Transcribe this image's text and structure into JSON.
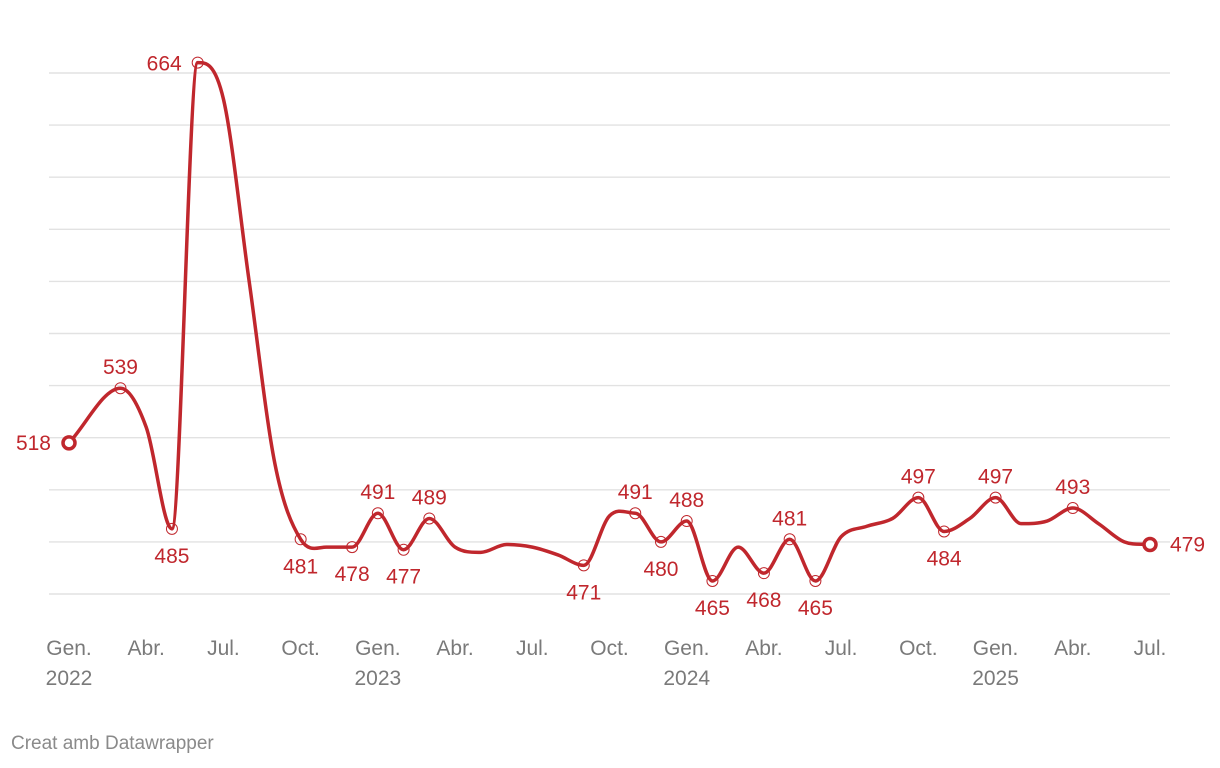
{
  "chart_data": {
    "type": "line",
    "title": "",
    "xlabel": "",
    "ylabel": "",
    "ylim": [
      450,
      675
    ],
    "grid": true,
    "y_tick_values": [
      460,
      480,
      500,
      520,
      540,
      560,
      580,
      600,
      620,
      640,
      660
    ],
    "x_ticks": [
      {
        "month": "2022-01",
        "label": [
          "Gen.",
          "2022"
        ]
      },
      {
        "month": "2022-04",
        "label": [
          "Abr."
        ]
      },
      {
        "month": "2022-07",
        "label": [
          "Jul."
        ]
      },
      {
        "month": "2022-10",
        "label": [
          "Oct."
        ]
      },
      {
        "month": "2023-01",
        "label": [
          "Gen.",
          "2023"
        ]
      },
      {
        "month": "2023-04",
        "label": [
          "Abr."
        ]
      },
      {
        "month": "2023-07",
        "label": [
          "Jul."
        ]
      },
      {
        "month": "2023-10",
        "label": [
          "Oct."
        ]
      },
      {
        "month": "2024-01",
        "label": [
          "Gen.",
          "2024"
        ]
      },
      {
        "month": "2024-04",
        "label": [
          "Abr."
        ]
      },
      {
        "month": "2024-07",
        "label": [
          "Jul."
        ]
      },
      {
        "month": "2024-10",
        "label": [
          "Oct."
        ]
      },
      {
        "month": "2025-01",
        "label": [
          "Gen.",
          "2025"
        ]
      },
      {
        "month": "2025-04",
        "label": [
          "Abr."
        ]
      },
      {
        "month": "2025-07",
        "label": [
          "Jul."
        ]
      }
    ],
    "series": [
      {
        "color": "#c0272d",
        "points": [
          {
            "x": "2022-01",
            "y": 518,
            "label": "518"
          },
          {
            "x": "2022-03",
            "y": 539,
            "label": "539"
          },
          {
            "x": "2022-04",
            "y": 524
          },
          {
            "x": "2022-05",
            "y": 485,
            "label": "485"
          },
          {
            "x": "2022-06",
            "y": 664,
            "label": "664"
          },
          {
            "x": "2022-07",
            "y": 650
          },
          {
            "x": "2022-08",
            "y": 580
          },
          {
            "x": "2022-09",
            "y": 510
          },
          {
            "x": "2022-10",
            "y": 481,
            "label": "481"
          },
          {
            "x": "2022-11",
            "y": 478
          },
          {
            "x": "2022-12",
            "y": 478,
            "label": "478"
          },
          {
            "x": "2023-01",
            "y": 491,
            "label": "491"
          },
          {
            "x": "2023-02",
            "y": 477,
            "label": "477"
          },
          {
            "x": "2023-03",
            "y": 489,
            "label": "489"
          },
          {
            "x": "2023-04",
            "y": 478
          },
          {
            "x": "2023-05",
            "y": 476
          },
          {
            "x": "2023-06",
            "y": 479
          },
          {
            "x": "2023-07",
            "y": 478
          },
          {
            "x": "2023-08",
            "y": 475
          },
          {
            "x": "2023-09",
            "y": 471,
            "label": "471"
          },
          {
            "x": "2023-10",
            "y": 490
          },
          {
            "x": "2023-11",
            "y": 491,
            "label": "491"
          },
          {
            "x": "2023-12",
            "y": 480,
            "label": "480"
          },
          {
            "x": "2024-01",
            "y": 488,
            "label": "488"
          },
          {
            "x": "2024-02",
            "y": 465,
            "label": "465"
          },
          {
            "x": "2024-03",
            "y": 478
          },
          {
            "x": "2024-04",
            "y": 468,
            "label": "468"
          },
          {
            "x": "2024-05",
            "y": 481,
            "label": "481"
          },
          {
            "x": "2024-06",
            "y": 465,
            "label": "465"
          },
          {
            "x": "2024-07",
            "y": 482
          },
          {
            "x": "2024-08",
            "y": 486
          },
          {
            "x": "2024-09",
            "y": 489
          },
          {
            "x": "2024-10",
            "y": 497,
            "label": "497"
          },
          {
            "x": "2024-11",
            "y": 484,
            "label": "484"
          },
          {
            "x": "2024-12",
            "y": 489
          },
          {
            "x": "2025-01",
            "y": 497,
            "label": "497"
          },
          {
            "x": "2025-02",
            "y": 487
          },
          {
            "x": "2025-03",
            "y": 488
          },
          {
            "x": "2025-04",
            "y": 493,
            "label": "493"
          },
          {
            "x": "2025-05",
            "y": 487
          },
          {
            "x": "2025-06",
            "y": 480
          },
          {
            "x": "2025-07",
            "y": 479,
            "label": "479"
          }
        ]
      }
    ]
  },
  "credit": "Creat amb Datawrapper"
}
